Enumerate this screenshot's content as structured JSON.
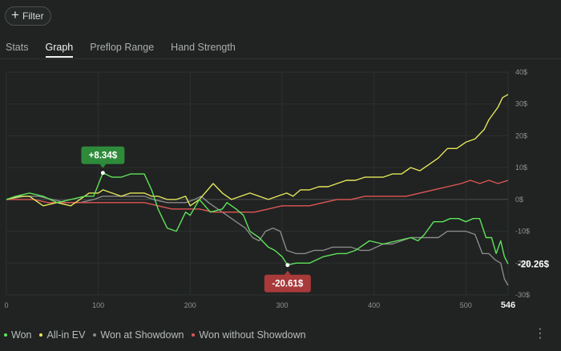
{
  "filter": {
    "label": "Filter",
    "icon": "plus-icon"
  },
  "tabs": [
    {
      "label": "Stats",
      "active": false
    },
    {
      "label": "Graph",
      "active": true
    },
    {
      "label": "Preflop Range",
      "active": false
    },
    {
      "label": "Hand Strength",
      "active": false
    }
  ],
  "colors": {
    "won": "#5fe35a",
    "allin_ev": "#e6e65a",
    "showdown": "#8a8a8a",
    "non_showdown": "#e05555",
    "badge_green": "#2e8b3a",
    "badge_red": "#a83a3a",
    "background": "#202322"
  },
  "chart_data": {
    "type": "line",
    "xlabel": "",
    "ylabel": "",
    "xlim": [
      0,
      546
    ],
    "ylim": [
      -30,
      40
    ],
    "x_ticks": [
      0,
      100,
      200,
      300,
      400,
      500
    ],
    "x_end_label": "546",
    "y_ticks": [
      {
        "value": 40,
        "label": "40$"
      },
      {
        "value": 30,
        "label": "30$"
      },
      {
        "value": 20,
        "label": "20$"
      },
      {
        "value": 10,
        "label": "10$"
      },
      {
        "value": 0,
        "label": "0$"
      },
      {
        "value": -10,
        "label": "-10$"
      },
      {
        "value": -20,
        "label": "-20$"
      },
      {
        "value": -30,
        "label": "-30$"
      }
    ],
    "grid": true,
    "legend_position": "bottom-left",
    "annotations": [
      {
        "label": "+8.34$",
        "x": 105,
        "y": 8.34,
        "series": "Won",
        "style": "badge-green"
      },
      {
        "label": "-20.61$",
        "x": 306,
        "y": -20.61,
        "series": "Won",
        "style": "badge-red"
      },
      {
        "label": "-20.26$",
        "x": 546,
        "y": -20.26,
        "series": "Won",
        "style": "end-label"
      }
    ],
    "series": [
      {
        "name": "Won",
        "color_key": "won",
        "points": [
          [
            0,
            0
          ],
          [
            10,
            1
          ],
          [
            25,
            2
          ],
          [
            40,
            1
          ],
          [
            55,
            -1
          ],
          [
            70,
            0
          ],
          [
            85,
            1
          ],
          [
            95,
            1
          ],
          [
            105,
            8.34
          ],
          [
            115,
            7
          ],
          [
            125,
            7
          ],
          [
            135,
            8
          ],
          [
            150,
            8
          ],
          [
            158,
            3
          ],
          [
            165,
            -3
          ],
          [
            175,
            -9
          ],
          [
            185,
            -10
          ],
          [
            195,
            -4
          ],
          [
            200,
            -5
          ],
          [
            210,
            0
          ],
          [
            222,
            -4
          ],
          [
            235,
            -3
          ],
          [
            240,
            -1
          ],
          [
            250,
            -3
          ],
          [
            258,
            -5
          ],
          [
            265,
            -10
          ],
          [
            275,
            -12
          ],
          [
            285,
            -15
          ],
          [
            292,
            -16
          ],
          [
            300,
            -18
          ],
          [
            306,
            -20.61
          ],
          [
            315,
            -20
          ],
          [
            330,
            -20
          ],
          [
            345,
            -18
          ],
          [
            360,
            -17
          ],
          [
            370,
            -17
          ],
          [
            380,
            -16
          ],
          [
            395,
            -13
          ],
          [
            410,
            -14
          ],
          [
            425,
            -13
          ],
          [
            440,
            -12
          ],
          [
            448,
            -13
          ],
          [
            455,
            -11
          ],
          [
            465,
            -7
          ],
          [
            475,
            -7
          ],
          [
            483,
            -6
          ],
          [
            492,
            -6
          ],
          [
            500,
            -7
          ],
          [
            508,
            -6
          ],
          [
            515,
            -6
          ],
          [
            522,
            -12
          ],
          [
            528,
            -12
          ],
          [
            533,
            -17
          ],
          [
            538,
            -13
          ],
          [
            542,
            -18
          ],
          [
            546,
            -20.26
          ]
        ]
      },
      {
        "name": "All-in EV",
        "color_key": "allin_ev",
        "points": [
          [
            0,
            0
          ],
          [
            15,
            1
          ],
          [
            25,
            1
          ],
          [
            40,
            -2
          ],
          [
            55,
            -1
          ],
          [
            70,
            -2
          ],
          [
            80,
            0
          ],
          [
            90,
            2
          ],
          [
            100,
            2
          ],
          [
            105,
            3
          ],
          [
            115,
            2
          ],
          [
            125,
            1
          ],
          [
            135,
            2
          ],
          [
            150,
            2
          ],
          [
            158,
            1
          ],
          [
            165,
            1
          ],
          [
            175,
            0
          ],
          [
            185,
            0
          ],
          [
            195,
            1
          ],
          [
            200,
            -2
          ],
          [
            210,
            0
          ],
          [
            225,
            5
          ],
          [
            235,
            2
          ],
          [
            245,
            0
          ],
          [
            255,
            1
          ],
          [
            265,
            2
          ],
          [
            275,
            1
          ],
          [
            285,
            0
          ],
          [
            295,
            1
          ],
          [
            305,
            2
          ],
          [
            312,
            1
          ],
          [
            320,
            3
          ],
          [
            330,
            3
          ],
          [
            340,
            4
          ],
          [
            350,
            4
          ],
          [
            360,
            5
          ],
          [
            370,
            6
          ],
          [
            380,
            6
          ],
          [
            390,
            7
          ],
          [
            400,
            7
          ],
          [
            410,
            7
          ],
          [
            420,
            8
          ],
          [
            430,
            8
          ],
          [
            440,
            10
          ],
          [
            450,
            9
          ],
          [
            460,
            11
          ],
          [
            470,
            13
          ],
          [
            480,
            16
          ],
          [
            490,
            16
          ],
          [
            500,
            18
          ],
          [
            510,
            19
          ],
          [
            520,
            22
          ],
          [
            525,
            25
          ],
          [
            530,
            27
          ],
          [
            535,
            29
          ],
          [
            540,
            32
          ],
          [
            546,
            33
          ]
        ]
      },
      {
        "name": "Won at Showdown",
        "color_key": "showdown",
        "points": [
          [
            0,
            0
          ],
          [
            20,
            1
          ],
          [
            35,
            1
          ],
          [
            50,
            0
          ],
          [
            65,
            -1
          ],
          [
            80,
            -1
          ],
          [
            95,
            0
          ],
          [
            105,
            1
          ],
          [
            125,
            1
          ],
          [
            140,
            1
          ],
          [
            150,
            1
          ],
          [
            160,
            0
          ],
          [
            175,
            -1
          ],
          [
            185,
            -1
          ],
          [
            195,
            -1
          ],
          [
            205,
            0
          ],
          [
            212,
            1
          ],
          [
            220,
            -1
          ],
          [
            230,
            -3
          ],
          [
            240,
            -5
          ],
          [
            250,
            -7
          ],
          [
            260,
            -9
          ],
          [
            268,
            -12
          ],
          [
            275,
            -13
          ],
          [
            282,
            -10
          ],
          [
            290,
            -9
          ],
          [
            298,
            -10
          ],
          [
            305,
            -16
          ],
          [
            315,
            -17
          ],
          [
            325,
            -17
          ],
          [
            335,
            -16
          ],
          [
            345,
            -16
          ],
          [
            355,
            -15
          ],
          [
            365,
            -15
          ],
          [
            375,
            -15
          ],
          [
            385,
            -16
          ],
          [
            395,
            -16
          ],
          [
            410,
            -14
          ],
          [
            420,
            -14
          ],
          [
            430,
            -13
          ],
          [
            440,
            -12
          ],
          [
            450,
            -12
          ],
          [
            460,
            -12
          ],
          [
            470,
            -12
          ],
          [
            480,
            -10
          ],
          [
            490,
            -10
          ],
          [
            500,
            -10
          ],
          [
            510,
            -11
          ],
          [
            518,
            -17
          ],
          [
            525,
            -17
          ],
          [
            532,
            -19
          ],
          [
            538,
            -20
          ],
          [
            542,
            -25
          ],
          [
            546,
            -27
          ]
        ]
      },
      {
        "name": "Won without Showdown",
        "color_key": "non_showdown",
        "points": [
          [
            0,
            0
          ],
          [
            15,
            0
          ],
          [
            30,
            0
          ],
          [
            45,
            -1
          ],
          [
            60,
            -1
          ],
          [
            75,
            -1
          ],
          [
            90,
            -1
          ],
          [
            105,
            -1
          ],
          [
            120,
            -1
          ],
          [
            135,
            -1
          ],
          [
            150,
            -1
          ],
          [
            165,
            -2
          ],
          [
            180,
            -3
          ],
          [
            195,
            -3
          ],
          [
            210,
            -3
          ],
          [
            225,
            -4
          ],
          [
            240,
            -4
          ],
          [
            255,
            -4
          ],
          [
            270,
            -4
          ],
          [
            285,
            -3
          ],
          [
            300,
            -2
          ],
          [
            315,
            -2
          ],
          [
            330,
            -2
          ],
          [
            345,
            -1
          ],
          [
            360,
            0
          ],
          [
            375,
            0
          ],
          [
            390,
            1
          ],
          [
            405,
            1
          ],
          [
            420,
            1
          ],
          [
            435,
            1
          ],
          [
            450,
            2
          ],
          [
            465,
            3
          ],
          [
            480,
            4
          ],
          [
            495,
            5
          ],
          [
            505,
            6
          ],
          [
            515,
            5
          ],
          [
            525,
            6
          ],
          [
            535,
            5
          ],
          [
            546,
            6
          ]
        ]
      }
    ]
  },
  "legend": [
    {
      "label": "Won",
      "color_key": "won"
    },
    {
      "label": "All-in EV",
      "color_key": "allin_ev"
    },
    {
      "label": "Won at Showdown",
      "color_key": "showdown"
    },
    {
      "label": "Won without Showdown",
      "color_key": "non_showdown"
    }
  ],
  "menu": {
    "icon": "kebab-menu-icon",
    "glyph": "⋮"
  }
}
